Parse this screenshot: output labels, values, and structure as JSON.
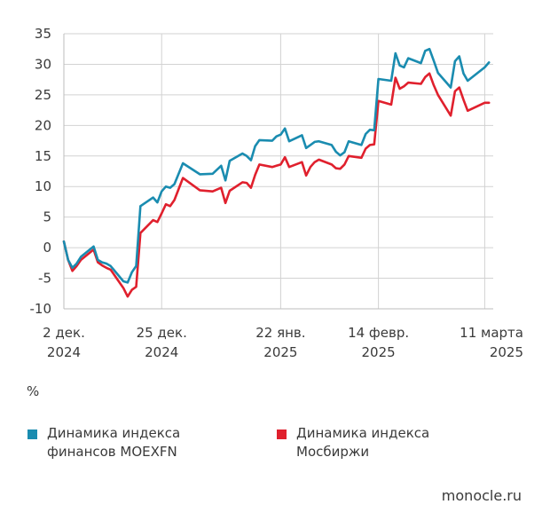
{
  "chart_data": {
    "type": "line",
    "ylabel": "%",
    "ylim": [
      -10,
      35
    ],
    "yticks": [
      -10,
      -5,
      0,
      5,
      10,
      15,
      20,
      25,
      30,
      35
    ],
    "xlim": [
      "2024-12-02",
      "2025-03-13"
    ],
    "xticks": [
      {
        "date": "2024-12-02",
        "line1": "2 дек.",
        "line2": "2024"
      },
      {
        "date": "2024-12-25",
        "line1": "25 дек.",
        "line2": "2024"
      },
      {
        "date": "2025-01-22",
        "line1": "22 янв.",
        "line2": "2025"
      },
      {
        "date": "2025-02-14",
        "line1": "14 февр.",
        "line2": "2025"
      },
      {
        "date": "2025-03-11",
        "line1": "11 марта",
        "line2": "2025"
      }
    ],
    "grid": true,
    "legend_position": "bottom",
    "series": [
      {
        "name": "Динамика индекса финансов MOEXFN",
        "color": "#1a8cb0",
        "points": [
          [
            "2024-12-02",
            1.0
          ],
          [
            "2024-12-03",
            -2.0
          ],
          [
            "2024-12-04",
            -3.3
          ],
          [
            "2024-12-05",
            -2.6
          ],
          [
            "2024-12-06",
            -1.5
          ],
          [
            "2024-12-09",
            0.2
          ],
          [
            "2024-12-10",
            -2.0
          ],
          [
            "2024-12-11",
            -2.4
          ],
          [
            "2024-12-12",
            -2.6
          ],
          [
            "2024-12-13",
            -3.0
          ],
          [
            "2024-12-16",
            -5.5
          ],
          [
            "2024-12-17",
            -5.7
          ],
          [
            "2024-12-18",
            -4.0
          ],
          [
            "2024-12-19",
            -3.0
          ],
          [
            "2024-12-20",
            6.8
          ],
          [
            "2024-12-23",
            8.2
          ],
          [
            "2024-12-24",
            7.4
          ],
          [
            "2024-12-25",
            9.2
          ],
          [
            "2024-12-26",
            10.0
          ],
          [
            "2024-12-27",
            9.8
          ],
          [
            "2024-12-28",
            10.4
          ],
          [
            "2024-12-30",
            13.8
          ],
          [
            "2025-01-03",
            12.0
          ],
          [
            "2025-01-06",
            12.1
          ],
          [
            "2025-01-08",
            13.4
          ],
          [
            "2025-01-09",
            11.0
          ],
          [
            "2025-01-10",
            14.2
          ],
          [
            "2025-01-13",
            15.4
          ],
          [
            "2025-01-14",
            15.0
          ],
          [
            "2025-01-15",
            14.3
          ],
          [
            "2025-01-16",
            16.6
          ],
          [
            "2025-01-17",
            17.6
          ],
          [
            "2025-01-20",
            17.5
          ],
          [
            "2025-01-21",
            18.2
          ],
          [
            "2025-01-22",
            18.5
          ],
          [
            "2025-01-23",
            19.5
          ],
          [
            "2025-01-24",
            17.4
          ],
          [
            "2025-01-27",
            18.4
          ],
          [
            "2025-01-28",
            16.3
          ],
          [
            "2025-01-29",
            16.8
          ],
          [
            "2025-01-30",
            17.3
          ],
          [
            "2025-01-31",
            17.4
          ],
          [
            "2025-02-03",
            16.8
          ],
          [
            "2025-02-04",
            15.7
          ],
          [
            "2025-02-05",
            15.1
          ],
          [
            "2025-02-06",
            15.6
          ],
          [
            "2025-02-07",
            17.4
          ],
          [
            "2025-02-10",
            16.8
          ],
          [
            "2025-02-11",
            18.6
          ],
          [
            "2025-02-12",
            19.3
          ],
          [
            "2025-02-13",
            19.2
          ],
          [
            "2025-02-14",
            27.6
          ],
          [
            "2025-02-17",
            27.3
          ],
          [
            "2025-02-18",
            31.8
          ],
          [
            "2025-02-19",
            29.8
          ],
          [
            "2025-02-20",
            29.5
          ],
          [
            "2025-02-21",
            31.0
          ],
          [
            "2025-02-24",
            30.2
          ],
          [
            "2025-02-25",
            32.2
          ],
          [
            "2025-02-26",
            32.5
          ],
          [
            "2025-02-27",
            30.6
          ],
          [
            "2025-02-28",
            28.6
          ],
          [
            "2025-03-03",
            26.2
          ],
          [
            "2025-03-04",
            30.5
          ],
          [
            "2025-03-05",
            31.3
          ],
          [
            "2025-03-06",
            28.5
          ],
          [
            "2025-03-07",
            27.3
          ],
          [
            "2025-03-11",
            29.5
          ],
          [
            "2025-03-12",
            30.3
          ]
        ]
      },
      {
        "name": "Динамика индекса Мосбиржи",
        "color": "#e0202d",
        "points": [
          [
            "2024-12-02",
            1.0
          ],
          [
            "2024-12-03",
            -2.0
          ],
          [
            "2024-12-04",
            -3.8
          ],
          [
            "2024-12-05",
            -3.0
          ],
          [
            "2024-12-06",
            -2.0
          ],
          [
            "2024-12-09",
            -0.3
          ],
          [
            "2024-12-10",
            -2.4
          ],
          [
            "2024-12-11",
            -2.9
          ],
          [
            "2024-12-12",
            -3.3
          ],
          [
            "2024-12-13",
            -3.6
          ],
          [
            "2024-12-16",
            -6.6
          ],
          [
            "2024-12-17",
            -8.0
          ],
          [
            "2024-12-18",
            -6.9
          ],
          [
            "2024-12-19",
            -6.4
          ],
          [
            "2024-12-20",
            2.4
          ],
          [
            "2024-12-23",
            4.5
          ],
          [
            "2024-12-24",
            4.2
          ],
          [
            "2024-12-25",
            5.6
          ],
          [
            "2024-12-26",
            7.1
          ],
          [
            "2024-12-27",
            6.8
          ],
          [
            "2024-12-28",
            7.8
          ],
          [
            "2024-12-30",
            11.4
          ],
          [
            "2025-01-03",
            9.4
          ],
          [
            "2025-01-06",
            9.2
          ],
          [
            "2025-01-08",
            9.8
          ],
          [
            "2025-01-09",
            7.3
          ],
          [
            "2025-01-10",
            9.3
          ],
          [
            "2025-01-13",
            10.7
          ],
          [
            "2025-01-14",
            10.6
          ],
          [
            "2025-01-15",
            9.8
          ],
          [
            "2025-01-16",
            11.9
          ],
          [
            "2025-01-17",
            13.6
          ],
          [
            "2025-01-20",
            13.2
          ],
          [
            "2025-01-21",
            13.4
          ],
          [
            "2025-01-22",
            13.6
          ],
          [
            "2025-01-23",
            14.8
          ],
          [
            "2025-01-24",
            13.2
          ],
          [
            "2025-01-27",
            14.0
          ],
          [
            "2025-01-28",
            11.8
          ],
          [
            "2025-01-29",
            13.2
          ],
          [
            "2025-01-30",
            14.0
          ],
          [
            "2025-01-31",
            14.4
          ],
          [
            "2025-02-03",
            13.6
          ],
          [
            "2025-02-04",
            13.0
          ],
          [
            "2025-02-05",
            12.9
          ],
          [
            "2025-02-06",
            13.6
          ],
          [
            "2025-02-07",
            15.0
          ],
          [
            "2025-02-10",
            14.7
          ],
          [
            "2025-02-11",
            16.2
          ],
          [
            "2025-02-12",
            16.8
          ],
          [
            "2025-02-13",
            16.9
          ],
          [
            "2025-02-14",
            24.0
          ],
          [
            "2025-02-17",
            23.4
          ],
          [
            "2025-02-18",
            27.8
          ],
          [
            "2025-02-19",
            26.0
          ],
          [
            "2025-02-20",
            26.4
          ],
          [
            "2025-02-21",
            27.0
          ],
          [
            "2025-02-24",
            26.8
          ],
          [
            "2025-02-25",
            27.9
          ],
          [
            "2025-02-26",
            28.5
          ],
          [
            "2025-02-27",
            26.6
          ],
          [
            "2025-02-28",
            25.0
          ],
          [
            "2025-03-03",
            21.6
          ],
          [
            "2025-03-04",
            25.6
          ],
          [
            "2025-03-05",
            26.2
          ],
          [
            "2025-03-06",
            24.2
          ],
          [
            "2025-03-07",
            22.4
          ],
          [
            "2025-03-11",
            23.7
          ],
          [
            "2025-03-12",
            23.7
          ]
        ]
      }
    ]
  },
  "legend": [
    {
      "name": "Динамика индекса финансов MOEXFN",
      "line1": "Динамика индекса",
      "line2": "финансов MOEXFN",
      "color": "#1a8cb0"
    },
    {
      "name": "Динамика индекса Мосбиржи",
      "line1": "Динамика индекса",
      "line2": "Мосбиржи",
      "color": "#e0202d"
    }
  ],
  "unit_label": "%",
  "source": "monocle.ru"
}
